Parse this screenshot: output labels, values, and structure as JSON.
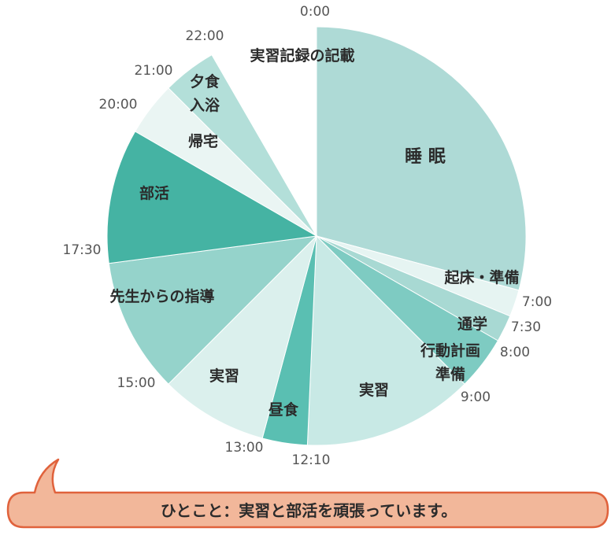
{
  "chart_data": {
    "type": "pie",
    "title": "",
    "start": "0:00",
    "segments": [
      {
        "start": "0:00",
        "end": "7:00",
        "hours": 7.0,
        "label": "睡 眠",
        "color": "#aedad6"
      },
      {
        "start": "7:00",
        "end": "7:30",
        "hours": 0.5,
        "label": "起床・準備",
        "color": "#e6f4f2"
      },
      {
        "start": "7:30",
        "end": "8:00",
        "hours": 0.5,
        "label": "通学",
        "color": "#a8d9d3"
      },
      {
        "start": "8:00",
        "end": "9:00",
        "hours": 1.0,
        "label": "行動計画\n準備",
        "color": "#7ecbc2"
      },
      {
        "start": "9:00",
        "end": "12:10",
        "hours": 3.1667,
        "label": "実習",
        "color": "#c8e9e5"
      },
      {
        "start": "12:10",
        "end": "13:00",
        "hours": 0.8333,
        "label": "昼食",
        "color": "#5abfb2"
      },
      {
        "start": "13:00",
        "end": "15:00",
        "hours": 2.0,
        "label": "実習",
        "color": "#dbf0ed"
      },
      {
        "start": "15:00",
        "end": "17:30",
        "hours": 2.5,
        "label": "先生からの指導",
        "color": "#95d3cb"
      },
      {
        "start": "17:30",
        "end": "20:00",
        "hours": 2.5,
        "label": "部活",
        "color": "#45b3a3"
      },
      {
        "start": "20:00",
        "end": "21:00",
        "hours": 1.0,
        "label": "帰宅",
        "color": "#eaf5f3"
      },
      {
        "start": "21:00",
        "end": "22:00",
        "hours": 1.0,
        "label": "夕食\n入浴",
        "color": "#b3dfd9"
      },
      {
        "start": "22:00",
        "end": "0:00",
        "hours": 2.0,
        "label": "実習記録の記載",
        "color": "#ffffff"
      }
    ],
    "time_ticks": [
      "0:00",
      "7:00",
      "7:30",
      "8:00",
      "9:00",
      "12:10",
      "13:00",
      "15:00",
      "17:30",
      "20:00",
      "21:00",
      "22:00"
    ]
  },
  "comment": {
    "text": "ひとこと：実習と部活を頑張っています。",
    "bg_color": "#f2b79a",
    "border_color": "#e0623c"
  }
}
